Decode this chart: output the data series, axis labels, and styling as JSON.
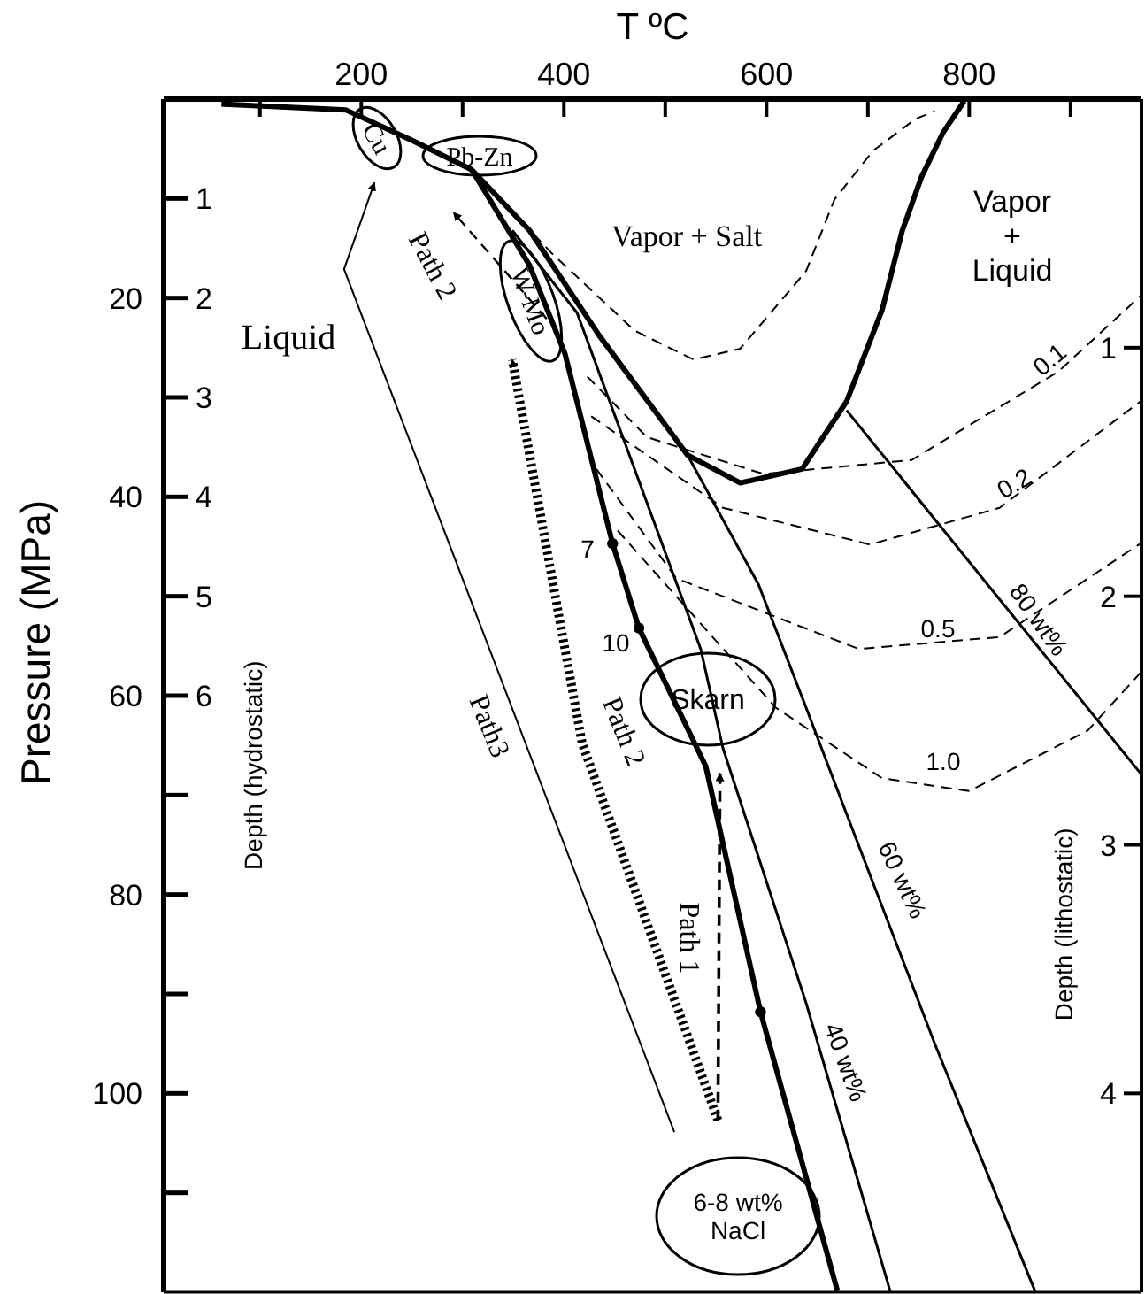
{
  "chart_data": {
    "type": "line",
    "xlabel": "T ºC",
    "ylabel": "Pressure (MPa)",
    "y2label": "Depth (hydrostatic)",
    "y3label": "Depth (lithostatic)",
    "xlim": [
      5,
      970
    ],
    "ylim": [
      120,
      0
    ],
    "y2lim": [
      12,
      0
    ],
    "y3lim": [
      4.8,
      0
    ],
    "xticks": [
      {
        "value": 100,
        "label": null
      },
      200,
      {
        "value": 300,
        "label": null
      },
      400,
      {
        "value": 500,
        "label": null
      },
      600,
      {
        "value": 700,
        "label": null
      },
      800,
      {
        "value": 900,
        "label": null
      }
    ],
    "yticks": [
      {
        "value": 10,
        "label": null
      },
      20,
      {
        "value": 30,
        "label": null
      },
      40,
      {
        "value": 50,
        "label": null
      },
      60,
      {
        "value": 70,
        "label": null
      },
      80,
      {
        "value": 90,
        "label": null
      },
      100,
      {
        "value": 110,
        "label": null
      }
    ],
    "y2ticks": [
      1,
      2,
      3,
      4,
      5,
      6
    ],
    "y3ticks": [
      1,
      2,
      3,
      4
    ],
    "series": [
      {
        "color": "#000000",
        "line_style": "solid",
        "x": [
          62,
          185,
          249,
          309,
          366,
          435,
          522,
          574,
          635,
          679,
          714,
          734,
          753,
          774,
          795
        ],
        "values": [
          0.5,
          1.1,
          4.1,
          7.1,
          13.2,
          23.8,
          35.8,
          38.6,
          37.2,
          30.4,
          21.2,
          13.2,
          7.8,
          3.4,
          0.2
        ]
      },
      {
        "color": "#000000",
        "line_style": "solid",
        "x": [
          309,
          366,
          401,
          448,
          474,
          540,
          594,
          670
        ],
        "values": [
          7.1,
          16.7,
          25.6,
          44.7,
          53.2,
          67.1,
          91.8,
          119.9
        ]
      },
      {
        "color": "#000000",
        "line_style": "solid",
        "x": [
          349,
          413,
          535,
          557,
          639,
          722
        ],
        "values": [
          13.2,
          21.5,
          55.3,
          65.3,
          90.9,
          119.9
        ]
      },
      {
        "color": "#000000",
        "line_style": "solid",
        "x": [
          522,
          592,
          639,
          679,
          766,
          865
        ],
        "values": [
          35.8,
          48.8,
          61.2,
          71.9,
          95.0,
          119.9
        ]
      },
      {
        "color": "#000000",
        "line_style": "solid",
        "x": [
          679,
          818,
          969
        ],
        "values": [
          31.3,
          48.8,
          67.8
        ]
      },
      {
        "color": "#000000",
        "line_style": "dashed",
        "x": [
          310,
          388,
          470,
          528,
          574,
          639,
          667,
          705,
          747,
          766
        ],
        "values": [
          7.1,
          15.5,
          23.3,
          26.2,
          25.1,
          17.3,
          10.1,
          5.2,
          2.0,
          1.2
        ]
      },
      {
        "color": "#000000",
        "line_style": "dashed",
        "x": [
          423,
          482,
          597,
          743,
          888,
          969
        ],
        "values": [
          27.9,
          34.0,
          37.7,
          36.3,
          27.4,
          19.8
        ]
      },
      {
        "color": "#000000",
        "line_style": "dashed",
        "x": [
          427,
          557,
          702,
          830,
          969
        ],
        "values": [
          31.9,
          41.1,
          44.8,
          41.1,
          30.4
        ]
      },
      {
        "color": "#000000",
        "line_style": "dashed",
        "x": [
          432,
          511,
          691,
          830,
          969
        ],
        "values": [
          37.2,
          48.2,
          55.3,
          54.1,
          44.7
        ]
      },
      {
        "color": "#000000",
        "line_style": "dashed",
        "x": [
          453,
          609,
          714,
          800,
          917,
          969
        ],
        "values": [
          43.4,
          61.2,
          68.3,
          69.6,
          63.5,
          57.7
        ]
      },
      {
        "color": "#000000",
        "line_style": "dashed",
        "x": [
          552,
          554
        ],
        "values": [
          102.7,
          67.8
        ]
      },
      {
        "color": "#000000",
        "line_style": "dotted",
        "x": [
          552,
          418,
          349
        ],
        "values": [
          102.7,
          64.8,
          26.2
        ]
      },
      {
        "color": "#000000",
        "line_style": "dashed",
        "x": [
          383,
          291
        ],
        "values": [
          22.1,
          11.4
        ]
      },
      {
        "color": "#000000",
        "line_style": "solid",
        "x": [
          509,
          183,
          213
        ],
        "values": [
          103.9,
          17.1,
          8.4
        ]
      },
      {
        "type": "scatter",
        "color": "#000000",
        "marker": "circle",
        "x": [
          448,
          474,
          594
        ],
        "values": [
          44.7,
          53.2,
          91.8
        ]
      }
    ],
    "annotations": [
      "Liquid",
      "Vapor + Salt",
      "Vapor + Liquid",
      "0.1",
      "0.2",
      "0.5",
      "1.0",
      "80 wt%",
      "60 wt%",
      "40 wt%",
      "7",
      "10",
      "Path 1",
      "Path 2",
      "Path 2",
      "Path3",
      "Cu",
      "Pb-Zn",
      "W-Mo",
      "Skarn",
      "6-8 wt% NaCl"
    ]
  }
}
